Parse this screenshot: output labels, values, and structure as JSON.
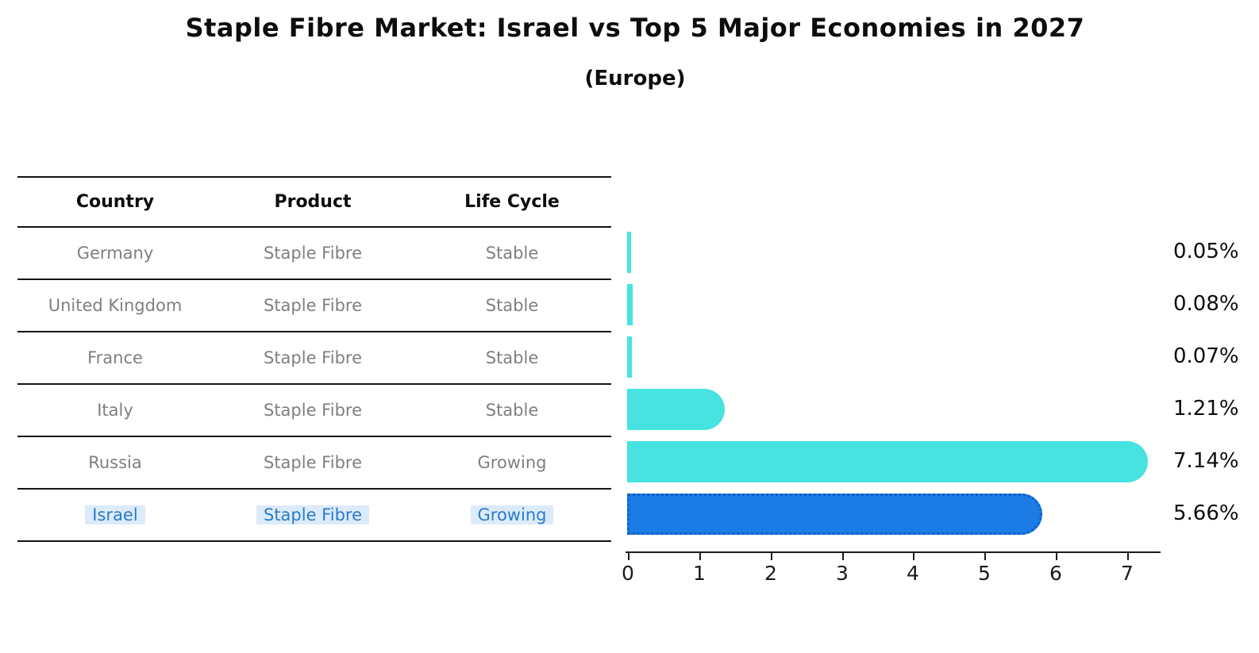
{
  "title": "Staple Fibre Market: Israel vs Top 5 Major Economies in 2027",
  "subtitle": "(Europe)",
  "table": {
    "headers": [
      "Country",
      "Product",
      "Life Cycle"
    ],
    "rows": [
      {
        "country": "Germany",
        "product": "Staple Fibre",
        "life_cycle": "Stable",
        "highlighted": false
      },
      {
        "country": "United Kingdom",
        "product": "Staple Fibre",
        "life_cycle": "Stable",
        "highlighted": false
      },
      {
        "country": "France",
        "product": "Staple Fibre",
        "life_cycle": "Stable",
        "highlighted": false
      },
      {
        "country": "Italy",
        "product": "Staple Fibre",
        "life_cycle": "Stable",
        "highlighted": false
      },
      {
        "country": "Russia",
        "product": "Staple Fibre",
        "life_cycle": "Growing",
        "highlighted": false
      },
      {
        "country": "Israel",
        "product": "Staple Fibre",
        "life_cycle": "Growing",
        "highlighted": true
      }
    ]
  },
  "chart_data": {
    "type": "bar",
    "orientation": "horizontal",
    "title": "Staple Fibre Market: Israel vs Top 5 Major Economies in 2027",
    "subtitle": "(Europe)",
    "categories": [
      "Germany",
      "United Kingdom",
      "France",
      "Italy",
      "Russia",
      "Israel"
    ],
    "values": [
      0.05,
      0.08,
      0.07,
      1.21,
      7.14,
      5.66
    ],
    "value_labels": [
      "0.05%",
      "0.08%",
      "0.07%",
      "1.21%",
      "7.14%",
      "5.66%"
    ],
    "xlabel": "",
    "ylabel": "",
    "xlim": [
      0,
      7.5
    ],
    "x_ticks": [
      "0",
      "1",
      "2",
      "3",
      "4",
      "5",
      "6",
      "7"
    ],
    "grid": false,
    "legend": false,
    "highlight_index": 5,
    "bar_color": "#47e3e0",
    "highlight_bar_color": "#1b7ce5",
    "highlight_border_color": "#1160c4",
    "highlight_text_color": "#2b7bc9",
    "text_color": "#0d0d0d",
    "muted_text_color": "#7f7f7f"
  }
}
